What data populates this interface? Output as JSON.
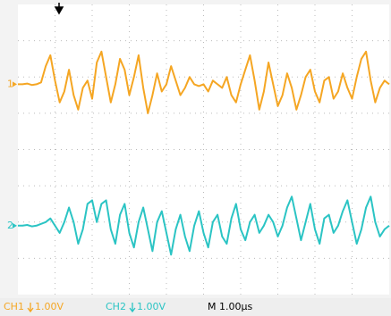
{
  "chart_data": {
    "type": "line",
    "x": [
      0,
      0.125,
      0.25,
      0.375,
      0.5,
      0.625,
      0.75,
      0.875,
      1,
      1.125,
      1.25,
      1.375,
      1.5,
      1.625,
      1.75,
      1.875,
      2,
      2.125,
      2.25,
      2.375,
      2.5,
      2.625,
      2.75,
      2.875,
      3,
      3.125,
      3.25,
      3.375,
      3.5,
      3.625,
      3.75,
      3.875,
      4,
      4.125,
      4.25,
      4.375,
      4.5,
      4.625,
      4.75,
      4.875,
      5,
      5.125,
      5.25,
      5.375,
      5.5,
      5.625,
      5.75,
      5.875,
      6,
      6.125,
      6.25,
      6.375,
      6.5,
      6.625,
      6.75,
      6.875,
      7,
      7.125,
      7.25,
      7.375,
      7.5,
      7.625,
      7.75,
      7.875,
      8,
      8.125,
      8.25,
      8.375,
      8.5,
      8.625,
      8.75,
      8.875,
      9,
      9.125,
      9.25,
      9.375,
      9.5,
      9.625,
      9.75,
      9.875,
      10
    ],
    "series": [
      {
        "name": "1",
        "color": "#f5a623",
        "values": [
          1.8,
          1.8,
          1.82,
          1.78,
          1.8,
          1.85,
          2.3,
          2.6,
          1.9,
          1.3,
          1.6,
          2.2,
          1.5,
          1.1,
          1.7,
          1.9,
          1.4,
          2.4,
          2.7,
          2.0,
          1.3,
          1.8,
          2.5,
          2.2,
          1.5,
          2.0,
          2.6,
          1.7,
          1.0,
          1.5,
          2.1,
          1.6,
          1.8,
          2.3,
          1.9,
          1.5,
          1.7,
          2.0,
          1.8,
          1.75,
          1.8,
          1.6,
          1.9,
          1.8,
          1.7,
          2.0,
          1.5,
          1.3,
          1.8,
          2.2,
          2.6,
          1.9,
          1.1,
          1.6,
          2.4,
          1.8,
          1.2,
          1.5,
          2.1,
          1.7,
          1.1,
          1.5,
          2.0,
          2.2,
          1.6,
          1.3,
          1.9,
          2.0,
          1.4,
          1.6,
          2.1,
          1.7,
          1.4,
          2.0,
          2.5,
          2.7,
          1.9,
          1.3,
          1.7,
          1.9,
          1.8
        ]
      },
      {
        "name": "2",
        "color": "#2bc4c4",
        "values": [
          -2.1,
          -2.1,
          -2.08,
          -2.12,
          -2.1,
          -2.05,
          -2.0,
          -1.9,
          -2.1,
          -2.3,
          -2.0,
          -1.6,
          -2.0,
          -2.6,
          -2.2,
          -1.5,
          -1.4,
          -2.0,
          -1.5,
          -1.4,
          -2.2,
          -2.6,
          -1.8,
          -1.5,
          -2.3,
          -2.7,
          -2.0,
          -1.6,
          -2.2,
          -2.8,
          -2.0,
          -1.7,
          -2.3,
          -2.9,
          -2.2,
          -1.8,
          -2.4,
          -2.8,
          -2.1,
          -1.7,
          -2.3,
          -2.7,
          -2.0,
          -1.8,
          -2.4,
          -2.6,
          -1.9,
          -1.5,
          -2.2,
          -2.5,
          -2.0,
          -1.8,
          -2.3,
          -2.1,
          -1.8,
          -2.0,
          -2.4,
          -2.1,
          -1.6,
          -1.3,
          -1.9,
          -2.5,
          -2.0,
          -1.5,
          -2.2,
          -2.6,
          -1.9,
          -1.8,
          -2.3,
          -2.1,
          -1.7,
          -1.4,
          -2.0,
          -2.6,
          -2.2,
          -1.6,
          -1.3,
          -2.0,
          -2.4,
          -2.2,
          -2.1
        ]
      }
    ],
    "xlim": [
      0,
      10
    ],
    "ylim": [
      -4,
      4
    ],
    "status": {
      "ch1_label": "CH1",
      "ch1_scale": "1.00V",
      "ch2_label": "CH2",
      "ch2_scale": "1.00V",
      "timebase": "M 1.00µs"
    }
  }
}
